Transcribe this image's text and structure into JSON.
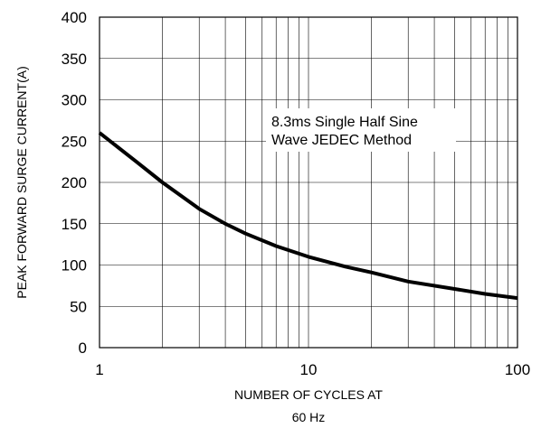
{
  "chart_data": {
    "type": "line",
    "title": "",
    "xlabel": [
      "NUMBER OF CYCLES AT",
      "60 Hz"
    ],
    "ylabel": "PEAK FORWARD SURGE CURRENT(A)",
    "x_scale": "log",
    "xlim": [
      1,
      100
    ],
    "ylim": [
      0,
      400
    ],
    "x_tick_labels": [
      "1",
      "10",
      "100"
    ],
    "y_tick_labels": [
      "0",
      "50",
      "100",
      "150",
      "200",
      "250",
      "300",
      "350",
      "400"
    ],
    "grid": true,
    "annotation": [
      "8.3ms Single Half Sine",
      "Wave JEDEC Method"
    ],
    "series": [
      {
        "x": [
          1,
          1.5,
          2,
          3,
          4,
          5,
          7,
          10,
          15,
          20,
          30,
          50,
          70,
          100
        ],
        "y": [
          260,
          225,
          200,
          168,
          150,
          138,
          123,
          110,
          98,
          91,
          80,
          71,
          65,
          60
        ]
      }
    ]
  }
}
